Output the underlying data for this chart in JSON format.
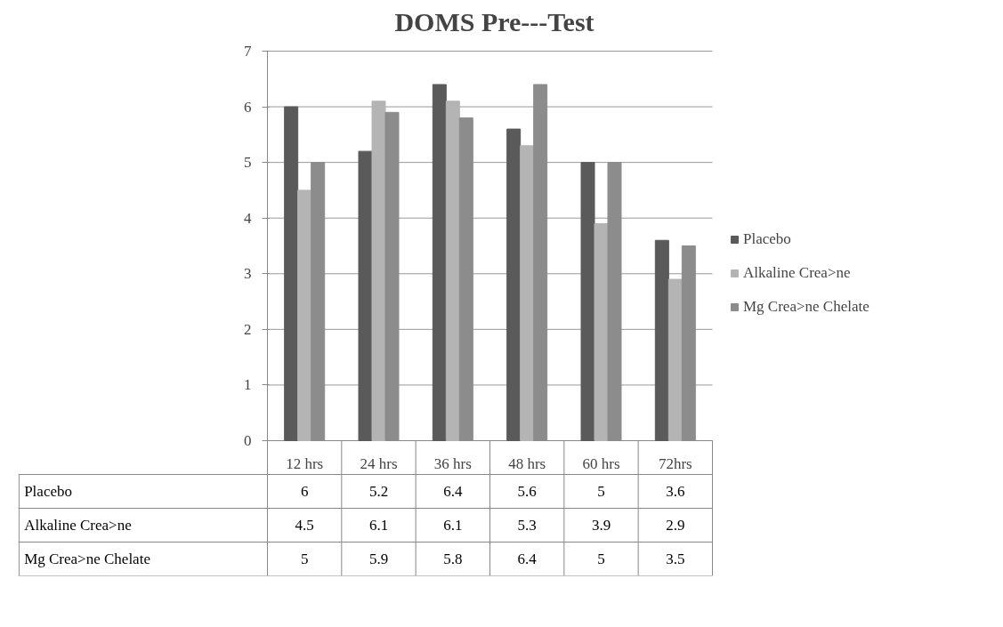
{
  "chart_data": {
    "type": "bar",
    "title": "DOMS Pre---Test",
    "categories": [
      "12 hrs",
      "24 hrs",
      "36 hrs",
      "48 hrs",
      "60 hrs",
      "72hrs"
    ],
    "series": [
      {
        "name": "Placebo",
        "color": "#5a5a5a",
        "values": [
          6,
          5.2,
          6.4,
          5.6,
          5,
          3.6
        ]
      },
      {
        "name": "Alkaline Crea>ne",
        "color": "#b4b4b4",
        "values": [
          4.5,
          6.1,
          6.1,
          5.3,
          3.9,
          2.9
        ]
      },
      {
        "name": "Mg Crea>ne Chelate",
        "color": "#8c8c8c",
        "values": [
          5,
          5.9,
          5.8,
          6.4,
          5,
          3.5
        ]
      }
    ],
    "ylim": [
      0,
      7
    ],
    "yticks": [
      0,
      1,
      2,
      3,
      4,
      5,
      6,
      7
    ],
    "grid": "y",
    "legend": "right",
    "data_labels": true
  }
}
